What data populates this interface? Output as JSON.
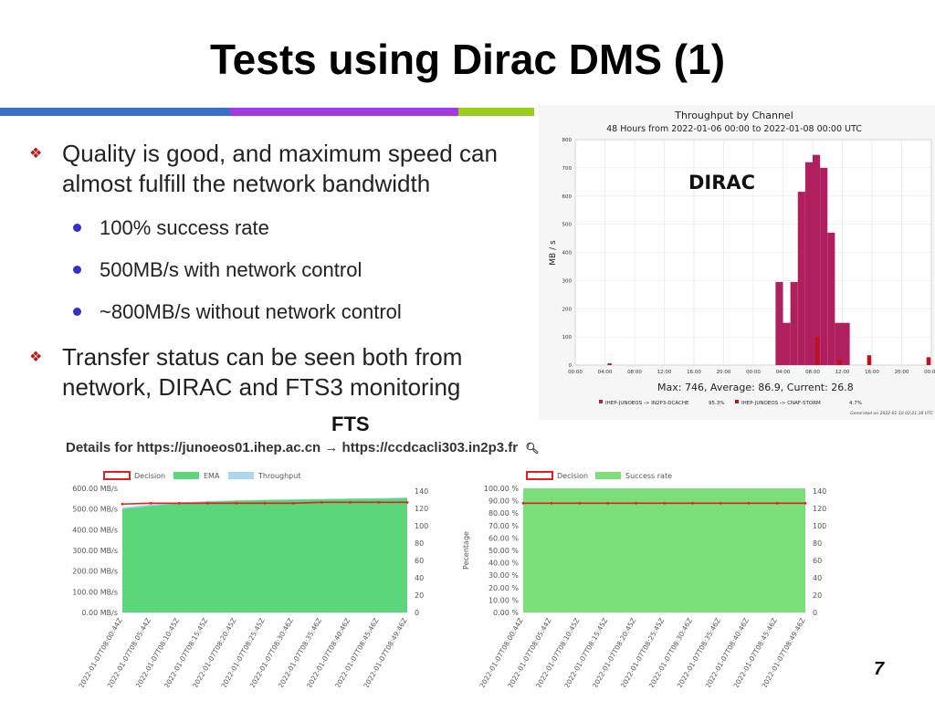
{
  "title": "Tests using Dirac DMS (1)",
  "accent_bar": [
    "#3a6fc7",
    "#a23be0",
    "#9ccc1c"
  ],
  "bullets": [
    {
      "text": "Quality is good, and maximum speed can almost fulfill the network bandwidth",
      "sub": [
        "100% success rate",
        "500MB/s with network control",
        "~800MB/s without network control"
      ]
    },
    {
      "text": "Transfer status can be seen both from network, DIRAC and FTS3 monitoring",
      "sub": []
    }
  ],
  "fts_label": "FTS",
  "fts_details": "Details for https://junoeos01.ihep.ac.cn → https://ccdcacli303.in2p3.fr",
  "page_number": "7",
  "chart_data": [
    {
      "type": "bar",
      "title": "Throughput by Channel",
      "subtitle": "48 Hours from 2022-01-06 00:00 to 2022-01-08 00:00 UTC",
      "overlay_label": "DIRAC",
      "ylabel": "MB / s",
      "ylim": [
        0,
        800
      ],
      "yticks": [
        "0",
        "100",
        "200",
        "300",
        "400",
        "500",
        "600",
        "700",
        "800"
      ],
      "xtick_labels": [
        "00:00",
        "04:00",
        "08:00",
        "12:00",
        "16:00",
        "20:00",
        "00:00",
        "04:00",
        "08:00",
        "12:00",
        "16:00",
        "20:00",
        "00:00"
      ],
      "stats": "Max: 746, Average: 86.9, Current: 26.8",
      "series": [
        {
          "name": "IHEP-JUNOEOS -> IN2P3-DCACHE",
          "share": "95.3%",
          "color": "#b0205e",
          "x": [
            27,
            28,
            29,
            30,
            31,
            32,
            33,
            34,
            35,
            36
          ],
          "values": [
            295,
            150,
            295,
            615,
            720,
            746,
            700,
            470,
            150,
            150
          ]
        },
        {
          "name": "IHEP-JUNOEOS -> CNAF-STORM",
          "share": "4.7%",
          "color": "#c0101e",
          "x": [
            4,
            32,
            35,
            39,
            47
          ],
          "values": [
            6,
            100,
            20,
            35,
            28
          ]
        }
      ],
      "generated": "Generated on 2022-01-10 02:21:38 UTC"
    },
    {
      "type": "area",
      "legend": [
        "Decision",
        "EMA",
        "Throughput"
      ],
      "colors": {
        "decision": "#e02020",
        "ema": "#5cd67a",
        "throughput": "#a8d8f0"
      },
      "y_left_ticks": [
        "600.00 MB/s",
        "500.00 MB/s",
        "400.00 MB/s",
        "300.00 MB/s",
        "200.00 MB/s",
        "100.00 MB/s",
        "0.00 MB/s"
      ],
      "y_right_ticks": [
        "140",
        "120",
        "100",
        "80",
        "60",
        "40",
        "20",
        "0"
      ],
      "x_labels": [
        "2022-01-07T08:00:44Z",
        "2022-01-07T08:05:44Z",
        "2022-01-07T08:10:45Z",
        "2022-01-07T08:15:45Z",
        "2022-01-07T08:20:45Z",
        "2022-01-07T08:25:45Z",
        "2022-01-07T08:30:46Z",
        "2022-01-07T08:35:46Z",
        "2022-01-07T08:40:46Z",
        "2022-01-07T08:45:46Z",
        "2022-01-07T08:49:46Z"
      ],
      "decision": [
        125,
        126,
        126,
        126,
        126,
        126,
        126,
        127,
        127,
        127,
        127
      ],
      "ema_mbps": [
        500,
        515,
        528,
        535,
        540,
        543,
        545,
        547,
        549,
        550,
        552
      ],
      "throughput_mbps": [
        508,
        522,
        532,
        538,
        542,
        545,
        547,
        549,
        551,
        553,
        556
      ]
    },
    {
      "type": "area",
      "legend": [
        "Decision",
        "Success rate"
      ],
      "colors": {
        "decision": "#e02020",
        "success": "#7be07a"
      },
      "y_left_title": "Pecentage",
      "y_left_ticks": [
        "100.00 %",
        "90.00 %",
        "80.00 %",
        "70.00 %",
        "60.00 %",
        "50.00 %",
        "40.00 %",
        "30.00 %",
        "20.00 %",
        "10.00 %",
        "0.00 %"
      ],
      "y_right_ticks": [
        "140",
        "120",
        "100",
        "80",
        "60",
        "40",
        "20",
        "0"
      ],
      "x_labels": [
        "2022-01-07T08:00:44Z",
        "2022-01-07T08:05:44Z",
        "2022-01-07T08:10:45Z",
        "2022-01-07T08:15:45Z",
        "2022-01-07T08:20:45Z",
        "2022-01-07T08:25:45Z",
        "2022-01-07T08:30:46Z",
        "2022-01-07T08:35:46Z",
        "2022-01-07T08:40:46Z",
        "2022-01-07T08:45:46Z",
        "2022-01-07T08:49:46Z"
      ],
      "success_rate": [
        100,
        100,
        100,
        100,
        100,
        100,
        100,
        100,
        100,
        100,
        100
      ],
      "decision": [
        126,
        126,
        126,
        126,
        126,
        126,
        126,
        126,
        126,
        126,
        126
      ]
    }
  ]
}
